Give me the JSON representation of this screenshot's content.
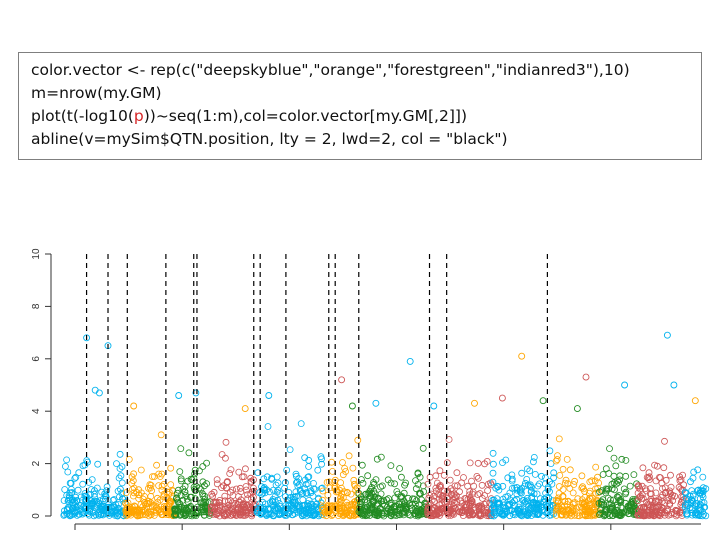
{
  "code": {
    "line1": "color.vector <- rep(c(\"deepskyblue\",\"orange\",\"forestgreen\",\"indianred3\"),10)",
    "line2": "m=nrow(my.GM)",
    "line3_before": "plot(t(-log10(",
    "line3_red": "p",
    "line3_after": "))~seq(1:m),col=color.vector[my.GM[,2]])",
    "line4": "abline(v=mySim$QTN.position, lty = 2, lwd=2, col = \"black\")"
  },
  "chart_data": {
    "type": "scatter",
    "title": "",
    "xlabel": "",
    "ylabel": "",
    "ylim": [
      0,
      10
    ],
    "yticks": [
      "0",
      "2",
      "4",
      "6",
      "8",
      "10"
    ],
    "xlim": [
      0,
      3000
    ],
    "grid": false,
    "legend": "none",
    "point_style": "open-circle",
    "colors": [
      "#00b2ee",
      "#ffa500",
      "#228b22",
      "#cd5555"
    ],
    "chromosomes": [
      {
        "index": 1,
        "start": 0,
        "end": 290,
        "color": "#00b2ee"
      },
      {
        "index": 2,
        "start": 290,
        "end": 520,
        "color": "#ffa500"
      },
      {
        "index": 3,
        "start": 520,
        "end": 690,
        "color": "#228b22"
      },
      {
        "index": 4,
        "start": 690,
        "end": 900,
        "color": "#cd5555"
      },
      {
        "index": 5,
        "start": 900,
        "end": 1210,
        "color": "#00b2ee"
      },
      {
        "index": 6,
        "start": 1210,
        "end": 1380,
        "color": "#ffa500"
      },
      {
        "index": 7,
        "start": 1380,
        "end": 1700,
        "color": "#228b22"
      },
      {
        "index": 8,
        "start": 1700,
        "end": 2000,
        "color": "#cd5555"
      },
      {
        "index": 9,
        "start": 2000,
        "end": 2300,
        "color": "#00b2ee"
      },
      {
        "index": 10,
        "start": 2300,
        "end": 2500,
        "color": "#ffa500"
      },
      {
        "index": 11,
        "start": 2500,
        "end": 2680,
        "color": "#228b22"
      },
      {
        "index": 12,
        "start": 2680,
        "end": 2900,
        "color": "#cd5555"
      },
      {
        "index": 13,
        "start": 2900,
        "end": 3000,
        "color": "#00b2ee"
      }
    ],
    "qtn_positions": [
      110,
      210,
      300,
      480,
      610,
      625,
      890,
      920,
      1040,
      1240,
      1270,
      1380,
      1710,
      1790,
      2260
    ],
    "highlighted_points": [
      {
        "x": 110,
        "y": 6.8,
        "color": "#00b2ee"
      },
      {
        "x": 150,
        "y": 4.8,
        "color": "#00b2ee"
      },
      {
        "x": 210,
        "y": 6.5,
        "color": "#00b2ee"
      },
      {
        "x": 330,
        "y": 4.2,
        "color": "#ffa500"
      },
      {
        "x": 540,
        "y": 4.6,
        "color": "#00b2ee"
      },
      {
        "x": 620,
        "y": 4.7,
        "color": "#00b2ee"
      },
      {
        "x": 1300,
        "y": 5.2,
        "color": "#cd5555"
      },
      {
        "x": 1460,
        "y": 4.3,
        "color": "#00b2ee"
      },
      {
        "x": 1620,
        "y": 5.9,
        "color": "#00b2ee"
      },
      {
        "x": 1730,
        "y": 4.2,
        "color": "#00b2ee"
      },
      {
        "x": 1920,
        "y": 4.3,
        "color": "#ffa500"
      },
      {
        "x": 2140,
        "y": 6.1,
        "color": "#ffa500"
      },
      {
        "x": 2240,
        "y": 4.4,
        "color": "#228b22"
      },
      {
        "x": 2440,
        "y": 5.3,
        "color": "#cd5555"
      },
      {
        "x": 2620,
        "y": 5.0,
        "color": "#00b2ee"
      },
      {
        "x": 2820,
        "y": 6.9,
        "color": "#00b2ee"
      },
      {
        "x": 2850,
        "y": 5.0,
        "color": "#00b2ee"
      },
      {
        "x": 2950,
        "y": 4.4,
        "color": "#ffa500"
      },
      {
        "x": 2050,
        "y": 4.5,
        "color": "#cd5555"
      },
      {
        "x": 2400,
        "y": 4.1,
        "color": "#228b22"
      },
      {
        "x": 1350,
        "y": 4.2,
        "color": "#228b22"
      },
      {
        "x": 850,
        "y": 4.1,
        "color": "#ffa500"
      },
      {
        "x": 960,
        "y": 4.6,
        "color": "#00b2ee"
      },
      {
        "x": 170,
        "y": 4.7,
        "color": "#00b2ee"
      }
    ]
  }
}
